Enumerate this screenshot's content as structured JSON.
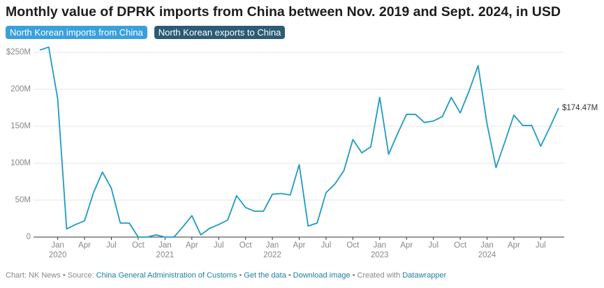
{
  "chart_data": {
    "type": "line",
    "title": "Monthly value of DPRK imports from China between Nov. 2019 and Sept. 2024, in USD",
    "other_views": [
      "North Korean exports to China"
    ],
    "x": [
      "2019-11",
      "2019-12",
      "2020-01",
      "2020-02",
      "2020-03",
      "2020-04",
      "2020-05",
      "2020-06",
      "2020-07",
      "2020-08",
      "2020-09",
      "2020-10",
      "2020-11",
      "2020-12",
      "2021-01",
      "2021-02",
      "2021-03",
      "2021-04",
      "2021-05",
      "2021-06",
      "2021-07",
      "2021-08",
      "2021-09",
      "2021-10",
      "2021-11",
      "2021-12",
      "2022-01",
      "2022-02",
      "2022-03",
      "2022-04",
      "2022-05",
      "2022-06",
      "2022-07",
      "2022-08",
      "2022-09",
      "2022-10",
      "2022-11",
      "2022-12",
      "2023-01",
      "2023-02",
      "2023-03",
      "2023-04",
      "2023-05",
      "2023-06",
      "2023-07",
      "2023-08",
      "2023-09",
      "2023-10",
      "2023-11",
      "2023-12",
      "2024-01",
      "2024-02",
      "2024-03",
      "2024-04",
      "2024-05",
      "2024-06",
      "2024-07",
      "2024-08",
      "2024-09"
    ],
    "series": [
      {
        "name": "North Korean imports from China",
        "color": "#1f9ac4",
        "values": [
          253,
          257,
          187,
          11,
          17,
          22,
          60,
          88,
          66,
          19,
          19,
          0,
          0,
          3,
          0,
          0,
          14,
          29,
          3,
          12,
          17,
          23,
          56,
          40,
          35,
          35,
          58,
          59,
          57,
          98,
          15,
          19,
          60,
          72,
          90,
          132,
          114,
          122,
          189,
          112,
          140,
          166,
          166,
          155,
          157,
          163,
          189,
          168,
          198,
          232,
          153,
          94,
          129,
          165,
          151,
          151,
          123,
          148,
          174.47
        ],
        "end_label": {
          "value": 174.47,
          "label": "$174.47M"
        }
      }
    ],
    "ylim": [
      0,
      250
    ],
    "yticks": [
      0,
      {
        "value": 50,
        "label": "50M"
      },
      {
        "value": 100,
        "label": "100M"
      },
      {
        "value": 150,
        "label": "150M"
      },
      {
        "value": 200,
        "label": "200M"
      },
      {
        "value": 250,
        "label": "$250M"
      }
    ],
    "xticks": [
      {
        "value": "2020-01",
        "label": "Jan"
      },
      {
        "value": "2020-04",
        "label": "Apr"
      },
      {
        "value": "2020-07",
        "label": "Jul"
      },
      {
        "value": "2020-10",
        "label": "Oct"
      },
      {
        "value": "2021-01",
        "label": "Jan"
      },
      {
        "value": "2021-04",
        "label": "Apr"
      },
      {
        "value": "2021-07",
        "label": "Jul"
      },
      {
        "value": "2021-10",
        "label": "Oct"
      },
      {
        "value": "2022-01",
        "label": "Jan"
      },
      {
        "value": "2022-04",
        "label": "Apr"
      },
      {
        "value": "2022-07",
        "label": "Jul"
      },
      {
        "value": "2022-10",
        "label": "Oct"
      },
      {
        "value": "2023-01",
        "label": "Jan"
      },
      {
        "value": "2023-04",
        "label": "Apr"
      },
      {
        "value": "2023-07",
        "label": "Jul"
      },
      {
        "value": "2023-10",
        "label": "Oct"
      },
      {
        "value": "2024-01",
        "label": "Jan"
      },
      {
        "value": "2024-04",
        "label": "Apr"
      },
      {
        "value": "2024-07",
        "label": "Jul"
      }
    ],
    "xtick_years": [
      {
        "value": "2020-01",
        "label": "2020"
      },
      {
        "value": "2021-01",
        "label": "2021"
      },
      {
        "value": "2022-01",
        "label": "2022"
      },
      {
        "value": "2023-01",
        "label": "2023"
      },
      {
        "value": "2024-01",
        "label": "2024"
      }
    ],
    "grid": true,
    "footer_separator": "•",
    "footer": [
      [
        {
          "text": "Chart: NK News",
          "link": false
        }
      ],
      [
        {
          "text": "Source:",
          "link": false
        },
        {
          "text": "China General Administration of Customs",
          "link": true
        }
      ],
      [
        {
          "text": "Get the data",
          "link": true
        }
      ],
      [
        {
          "text": "Download image",
          "link": true
        }
      ],
      [
        {
          "text": "Created with",
          "link": false
        },
        {
          "text": "Datawrapper",
          "link": true
        }
      ]
    ]
  }
}
